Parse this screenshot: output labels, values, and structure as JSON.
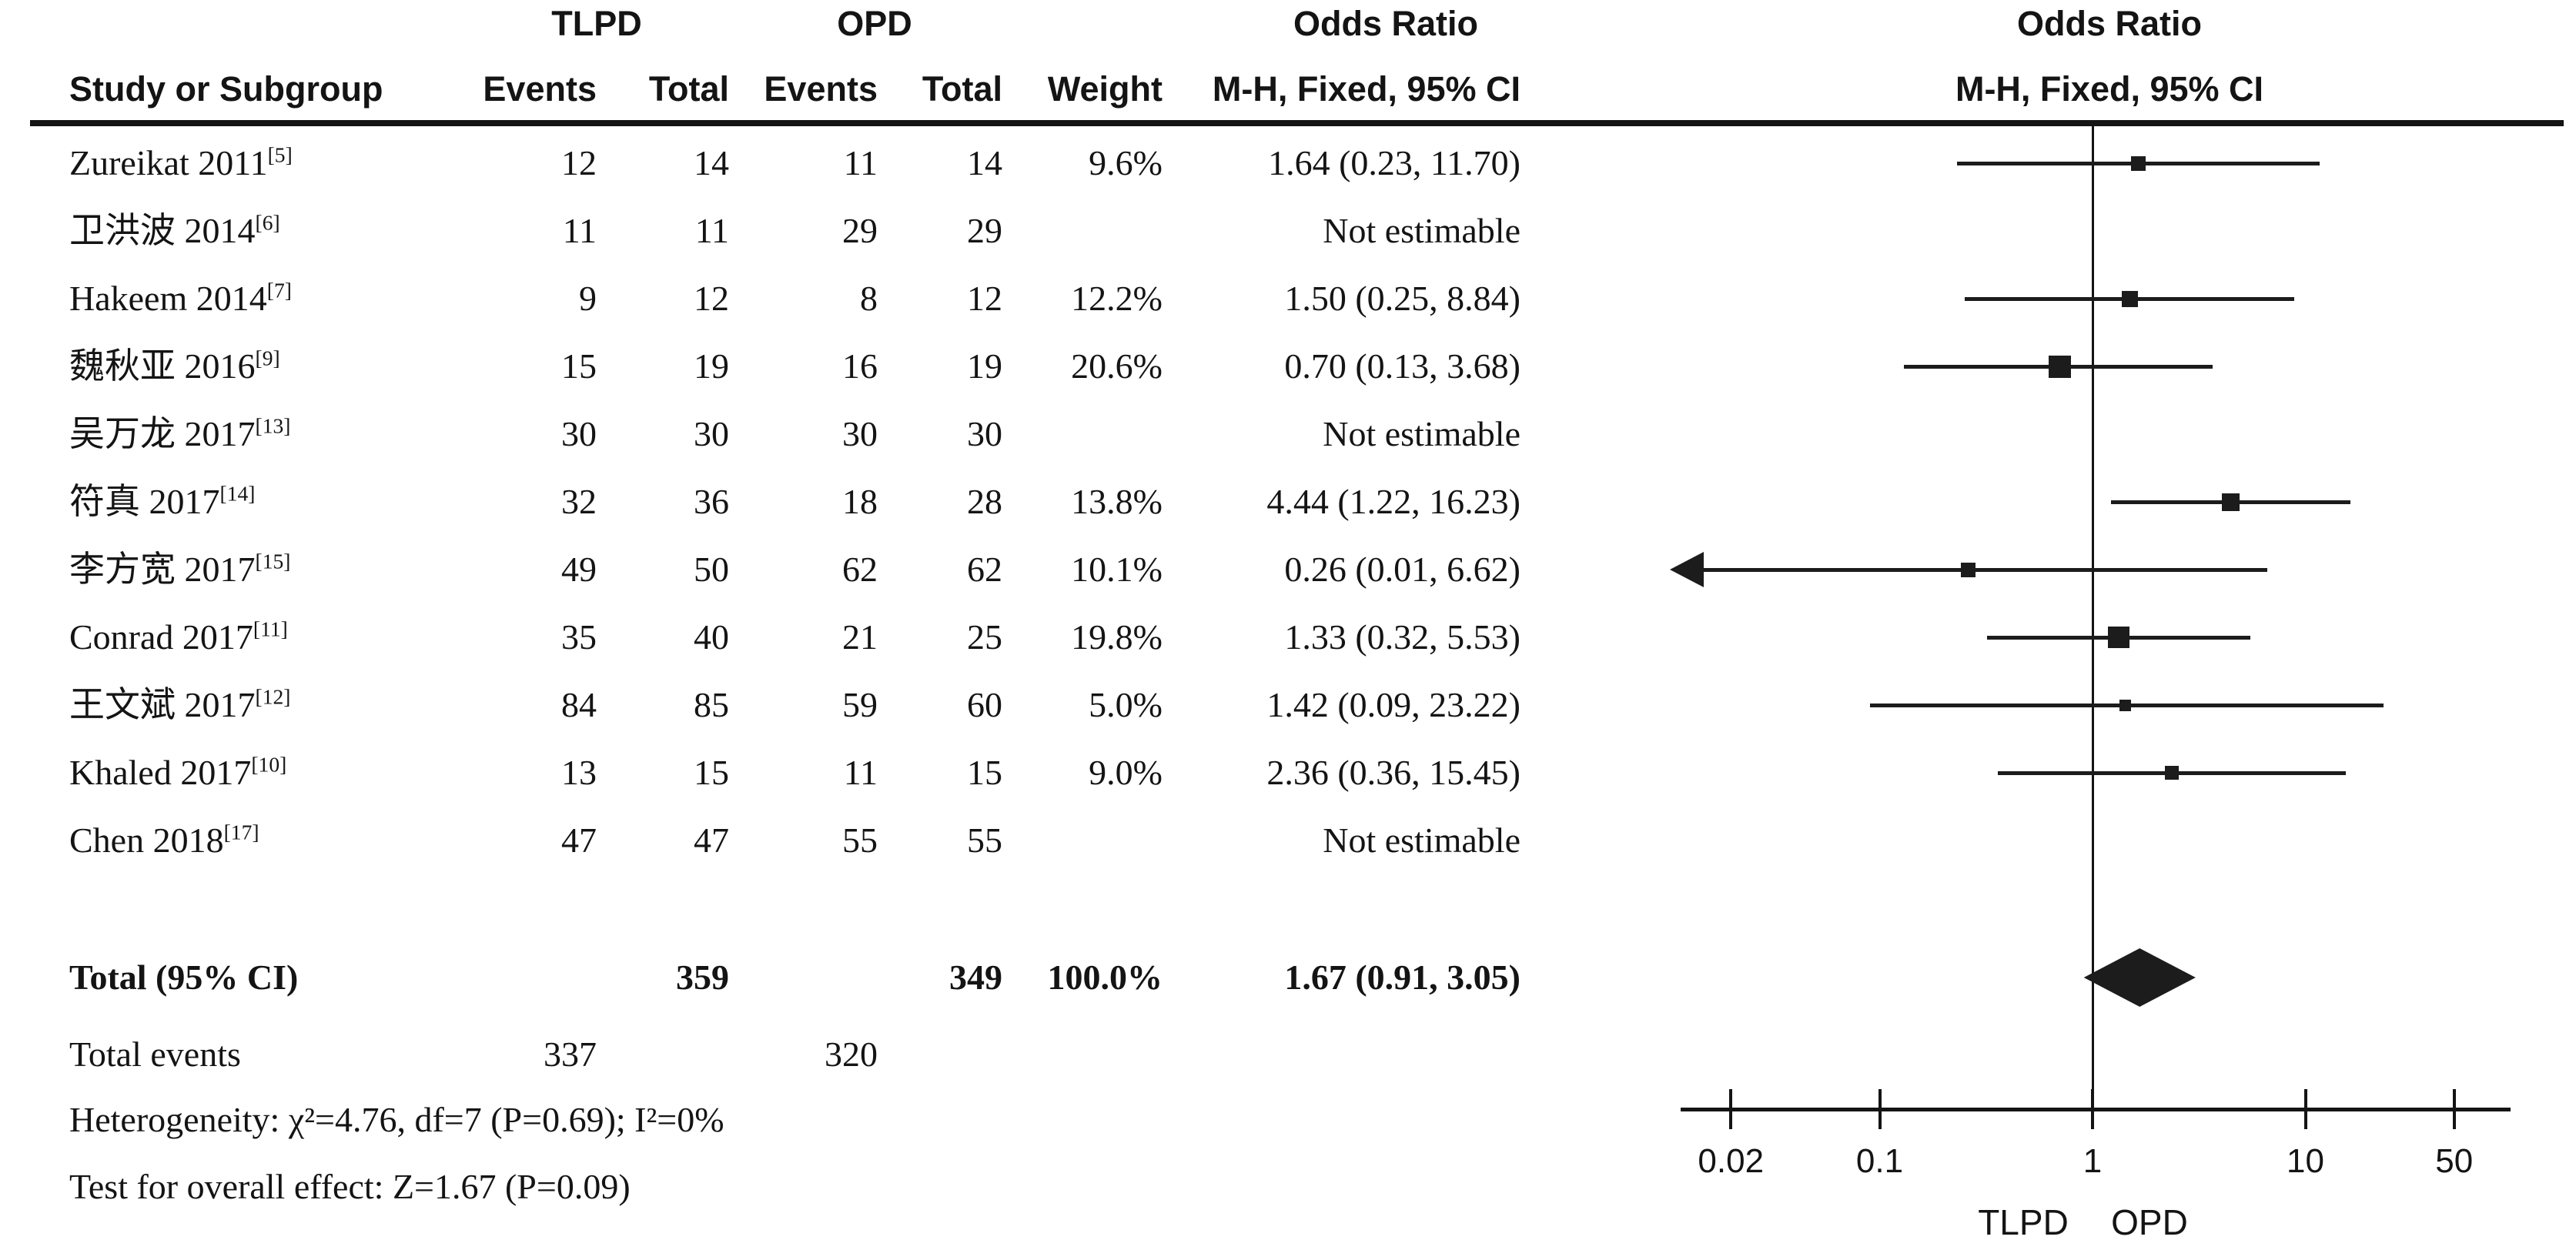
{
  "columns": {
    "group1": "TLPD",
    "group2": "OPD",
    "or_left": "Odds Ratio",
    "or_right": "Odds Ratio",
    "study": "Study or Subgroup",
    "events1": "Events",
    "total1": "Total",
    "events2": "Events",
    "total2": "Total",
    "weight": "Weight",
    "mh_left": "M-H, Fixed, 95% CI",
    "mh_right": "M-H, Fixed, 95% CI"
  },
  "chart_data": {
    "type": "forest",
    "title": "Odds Ratio, M-H, Fixed, 95% CI",
    "x_scale": "log",
    "x_ticks": [
      0.02,
      0.1,
      1,
      10,
      50
    ],
    "x_range": [
      0.012,
      90
    ],
    "grid": false,
    "group_labels": {
      "left": "TLPD",
      "right": "OPD"
    },
    "not_estimable_label": "Not estimable",
    "studies": [
      {
        "study": "Zureikat 2011",
        "ref": "[5]",
        "tlpd_events": 12,
        "tlpd_total": 14,
        "opd_events": 11,
        "opd_total": 14,
        "weight": "9.6%",
        "weight_pct": 9.6,
        "or": 1.64,
        "ci_low": 0.23,
        "ci_high": 11.7,
        "or_text": "1.64 (0.23, 11.70)",
        "estimable": true
      },
      {
        "study": "卫洪波 2014",
        "ref": "[6]",
        "tlpd_events": 11,
        "tlpd_total": 11,
        "opd_events": 29,
        "opd_total": 29,
        "weight": "",
        "weight_pct": null,
        "or": null,
        "ci_low": null,
        "ci_high": null,
        "or_text": "Not estimable",
        "estimable": false
      },
      {
        "study": "Hakeem 2014",
        "ref": "[7]",
        "tlpd_events": 9,
        "tlpd_total": 12,
        "opd_events": 8,
        "opd_total": 12,
        "weight": "12.2%",
        "weight_pct": 12.2,
        "or": 1.5,
        "ci_low": 0.25,
        "ci_high": 8.84,
        "or_text": "1.50 (0.25, 8.84)",
        "estimable": true
      },
      {
        "study": "魏秋亚 2016",
        "ref": "[9]",
        "tlpd_events": 15,
        "tlpd_total": 19,
        "opd_events": 16,
        "opd_total": 19,
        "weight": "20.6%",
        "weight_pct": 20.6,
        "or": 0.7,
        "ci_low": 0.13,
        "ci_high": 3.68,
        "or_text": "0.70 (0.13, 3.68)",
        "estimable": true
      },
      {
        "study": "吴万龙 2017",
        "ref": "[13]",
        "tlpd_events": 30,
        "tlpd_total": 30,
        "opd_events": 30,
        "opd_total": 30,
        "weight": "",
        "weight_pct": null,
        "or": null,
        "ci_low": null,
        "ci_high": null,
        "or_text": "Not estimable",
        "estimable": false
      },
      {
        "study": "符真 2017",
        "ref": "[14]",
        "tlpd_events": 32,
        "tlpd_total": 36,
        "opd_events": 18,
        "opd_total": 28,
        "weight": "13.8%",
        "weight_pct": 13.8,
        "or": 4.44,
        "ci_low": 1.22,
        "ci_high": 16.23,
        "or_text": "4.44 (1.22, 16.23)",
        "estimable": true
      },
      {
        "study": "李方宽 2017",
        "ref": "[15]",
        "tlpd_events": 49,
        "tlpd_total": 50,
        "opd_events": 62,
        "opd_total": 62,
        "weight": "10.1%",
        "weight_pct": 10.1,
        "or": 0.26,
        "ci_low": 0.01,
        "ci_high": 6.62,
        "or_text": "0.26 (0.01, 6.62)",
        "estimable": true
      },
      {
        "study": "Conrad 2017",
        "ref": "[11]",
        "tlpd_events": 35,
        "tlpd_total": 40,
        "opd_events": 21,
        "opd_total": 25,
        "weight": "19.8%",
        "weight_pct": 19.8,
        "or": 1.33,
        "ci_low": 0.32,
        "ci_high": 5.53,
        "or_text": "1.33 (0.32, 5.53)",
        "estimable": true
      },
      {
        "study": "王文斌 2017",
        "ref": "[12]",
        "tlpd_events": 84,
        "tlpd_total": 85,
        "opd_events": 59,
        "opd_total": 60,
        "weight": "5.0%",
        "weight_pct": 5.0,
        "or": 1.42,
        "ci_low": 0.09,
        "ci_high": 23.22,
        "or_text": "1.42 (0.09, 23.22)",
        "estimable": true
      },
      {
        "study": "Khaled 2017",
        "ref": "[10]",
        "tlpd_events": 13,
        "tlpd_total": 15,
        "opd_events": 11,
        "opd_total": 15,
        "weight": "9.0%",
        "weight_pct": 9.0,
        "or": 2.36,
        "ci_low": 0.36,
        "ci_high": 15.45,
        "or_text": "2.36 (0.36, 15.45)",
        "estimable": true
      },
      {
        "study": "Chen 2018",
        "ref": "[17]",
        "tlpd_events": 47,
        "tlpd_total": 47,
        "opd_events": 55,
        "opd_total": 55,
        "weight": "",
        "weight_pct": null,
        "or": null,
        "ci_low": null,
        "ci_high": null,
        "or_text": "Not estimable",
        "estimable": false
      }
    ],
    "total": {
      "label": "Total (95% CI)",
      "tlpd_total": 359,
      "opd_total": 349,
      "weight": "100.0%",
      "or": 1.67,
      "ci_low": 0.91,
      "ci_high": 3.05,
      "or_text": "1.67 (0.91, 3.05)"
    },
    "total_events": {
      "label": "Total events",
      "tlpd": 337,
      "opd": 320
    },
    "heterogeneity": "Heterogeneity: χ²=4.76, df=7 (P=0.69); I²=0%",
    "overall_effect": "Test for overall effect: Z=1.67 (P=0.09)"
  }
}
